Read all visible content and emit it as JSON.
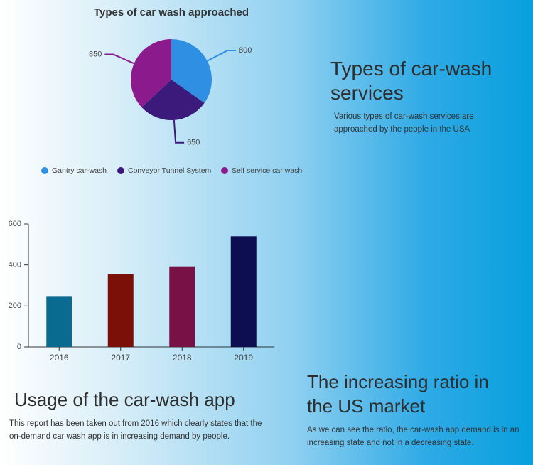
{
  "chart_data": [
    {
      "type": "pie",
      "title": "Types of car wash approached",
      "categories": [
        "Gantry car-wash",
        "Conveyor Tunnel System",
        "Self service car wash"
      ],
      "values": [
        800,
        650,
        850
      ],
      "colors": [
        "#2f8fe3",
        "#3c1a7c",
        "#8b1a8c"
      ],
      "legend": "bottom"
    },
    {
      "type": "bar",
      "categories": [
        "2016",
        "2017",
        "2018",
        "2019"
      ],
      "values": [
        245,
        355,
        393,
        540
      ],
      "colors": [
        "#0b6a8f",
        "#7a1008",
        "#781246",
        "#0d0d52"
      ],
      "ylim": [
        0,
        600
      ],
      "yticks": [
        0,
        200,
        400,
        600
      ],
      "grid": false
    }
  ],
  "sections": [
    {
      "heading": "Types of car-wash services",
      "text": "Various types of car-wash services are approached by the people in the USA"
    },
    {
      "heading": "Usage of the car-wash app",
      "text": "This report has been taken out from 2016 which clearly states that the on-demand car wash app is in increasing demand by people."
    },
    {
      "heading": "The increasing ratio in the US market",
      "text": "As we can see the ratio, the car-wash app demand is in an increasing state and not in a decreasing state."
    }
  ]
}
